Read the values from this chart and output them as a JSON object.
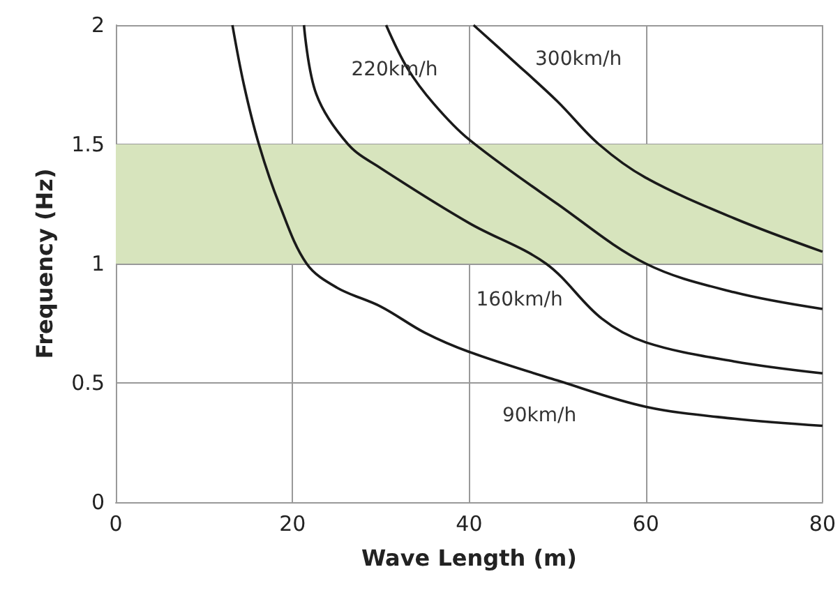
{
  "chart_data": {
    "type": "line",
    "xlabel": "Wave Length (m)",
    "ylabel": "Frequency (Hz)",
    "xlim": [
      0,
      80
    ],
    "xticks": [
      0,
      20,
      40,
      60,
      80
    ],
    "ylim": [
      0,
      2
    ],
    "yticks": [
      0,
      0.5,
      1,
      1.5,
      2
    ],
    "grid": true,
    "marker": "none",
    "line_style": "solid",
    "legend": false,
    "series": [
      {
        "name": "90km/h",
        "color": "#1a1a1a",
        "x": [
          13.2,
          14.5,
          16.2,
          18.5,
          21.6,
          25,
          30,
          35,
          40,
          50,
          60,
          70,
          80
        ],
        "values": [
          2,
          1.75,
          1.5,
          1.25,
          1,
          0.9,
          0.82,
          0.71,
          0.63,
          0.51,
          0.4,
          0.35,
          0.32
        ]
      },
      {
        "name": "160km/h",
        "color": "#1a1a1a",
        "x": [
          21.3,
          22.7,
          26.3,
          30,
          40,
          48.7,
          55,
          60,
          70,
          80
        ],
        "values": [
          2,
          1.71,
          1.5,
          1.4,
          1.17,
          1,
          0.77,
          0.67,
          0.59,
          0.54
        ]
      },
      {
        "name": "220km/h",
        "color": "#1a1a1a",
        "x": [
          30.6,
          33,
          36,
          40,
          50,
          60,
          70,
          80
        ],
        "values": [
          2,
          1.82,
          1.67,
          1.52,
          1.25,
          1,
          0.88,
          0.81
        ]
      },
      {
        "name": "300km/h",
        "color": "#1a1a1a",
        "x": [
          40.5,
          45,
          50,
          54.7,
          60,
          70,
          80
        ],
        "values": [
          2,
          1.85,
          1.68,
          1.5,
          1.36,
          1.19,
          1.05
        ]
      }
    ],
    "bands": [
      {
        "axis": "y",
        "from": 1,
        "to": 1.5,
        "color": "#d7e4bd"
      }
    ]
  }
}
